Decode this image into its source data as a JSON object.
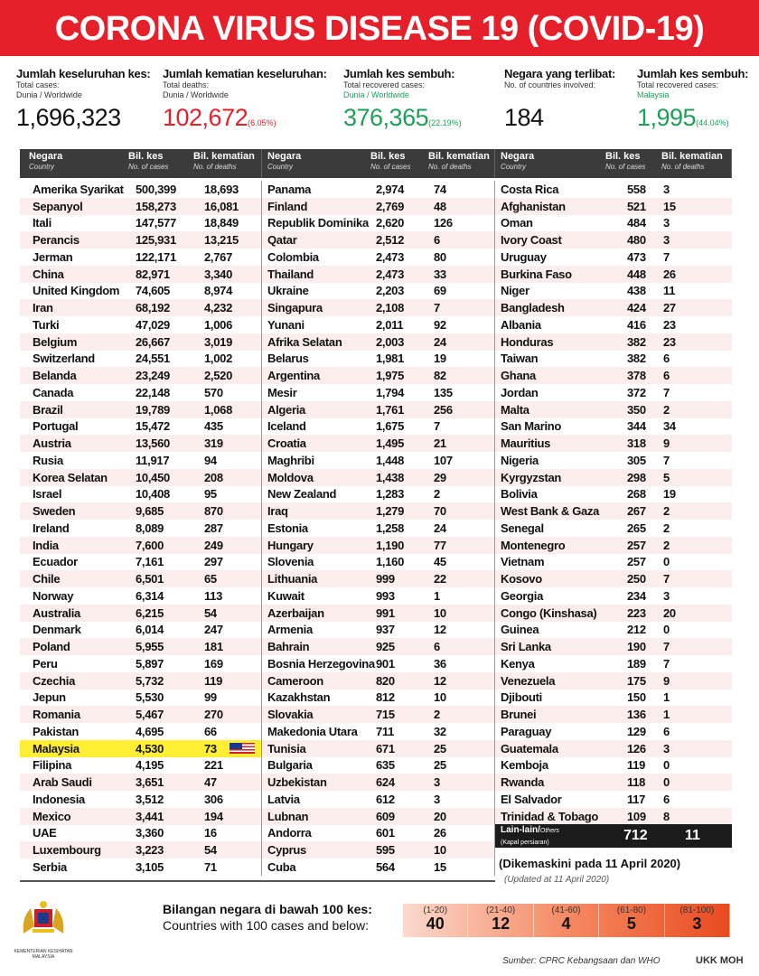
{
  "title": "CORONA VIRUS DISEASE 19 (COVID-19)",
  "stats": [
    {
      "heading": "Jumlah keseluruhan kes:",
      "sub1": "Total cases:",
      "sub2": "Dunia / Worldwide",
      "value": "1,696,323",
      "pct": ""
    },
    {
      "heading": "Jumlah kematian keseluruhan:",
      "sub1": "Total deaths:",
      "sub2": "Dunia / Worldwide",
      "value": "102,672",
      "pct": "(6.05%)"
    },
    {
      "heading": "Jumlah kes sembuh:",
      "sub1": "Total recovered cases:",
      "sub2": "Dunia / Worldwide",
      "value": "376,365",
      "pct": "(22.19%)"
    },
    {
      "heading": "Negara yang terlibat:",
      "sub1": "No. of countries involved:",
      "sub2": "",
      "value": "184",
      "pct": ""
    },
    {
      "heading": "Jumlah kes sembuh:",
      "sub1": "Total recovered cases:",
      "sub2": "Malaysia",
      "value": "1,995",
      "pct": "(44.04%)"
    }
  ],
  "header": {
    "country": "Negara",
    "country_en": "Country",
    "cases": "Bil. kes",
    "cases_en": "No. of cases",
    "deaths": "Bil. kematian",
    "deaths_en": "No. of deaths"
  },
  "columns": [
    [
      [
        "Amerika Syarikat",
        "500,399",
        "18,693"
      ],
      [
        "Sepanyol",
        "158,273",
        "16,081"
      ],
      [
        "Itali",
        "147,577",
        "18,849"
      ],
      [
        "Perancis",
        "125,931",
        "13,215"
      ],
      [
        "Jerman",
        "122,171",
        "2,767"
      ],
      [
        "China",
        "82,971",
        "3,340"
      ],
      [
        "United Kingdom",
        "74,605",
        "8,974"
      ],
      [
        "Iran",
        "68,192",
        "4,232"
      ],
      [
        "Turki",
        "47,029",
        "1,006"
      ],
      [
        "Belgium",
        "26,667",
        "3,019"
      ],
      [
        "Switzerland",
        "24,551",
        "1,002"
      ],
      [
        "Belanda",
        "23,249",
        "2,520"
      ],
      [
        "Canada",
        "22,148",
        "570"
      ],
      [
        "Brazil",
        "19,789",
        "1,068"
      ],
      [
        "Portugal",
        "15,472",
        "435"
      ],
      [
        "Austria",
        "13,560",
        "319"
      ],
      [
        "Rusia",
        "11,917",
        "94"
      ],
      [
        "Korea Selatan",
        "10,450",
        "208"
      ],
      [
        "Israel",
        "10,408",
        "95"
      ],
      [
        "Sweden",
        "9,685",
        "870"
      ],
      [
        "Ireland",
        "8,089",
        "287"
      ],
      [
        "India",
        "7,600",
        "249"
      ],
      [
        "Ecuador",
        "7,161",
        "297"
      ],
      [
        "Chile",
        "6,501",
        "65"
      ],
      [
        "Norway",
        "6,314",
        "113"
      ],
      [
        "Australia",
        "6,215",
        "54"
      ],
      [
        "Denmark",
        "6,014",
        "247"
      ],
      [
        "Poland",
        "5,955",
        "181"
      ],
      [
        "Peru",
        "5,897",
        "169"
      ],
      [
        "Czechia",
        "5,732",
        "119"
      ],
      [
        "Jepun",
        "5,530",
        "99"
      ],
      [
        "Romania",
        "5,467",
        "270"
      ],
      [
        "Pakistan",
        "4,695",
        "66"
      ],
      [
        "Malaysia",
        "4,530",
        "73"
      ],
      [
        "Filipina",
        "4,195",
        "221"
      ],
      [
        "Arab Saudi",
        "3,651",
        "47"
      ],
      [
        "Indonesia",
        "3,512",
        "306"
      ],
      [
        "Mexico",
        "3,441",
        "194"
      ],
      [
        "UAE",
        "3,360",
        "16"
      ],
      [
        "Luxembourg",
        "3,223",
        "54"
      ],
      [
        "Serbia",
        "3,105",
        "71"
      ]
    ],
    [
      [
        "Panama",
        "2,974",
        "74"
      ],
      [
        "Finland",
        "2,769",
        "48"
      ],
      [
        "Republik Dominika",
        "2,620",
        "126"
      ],
      [
        "Qatar",
        "2,512",
        "6"
      ],
      [
        "Colombia",
        "2,473",
        "80"
      ],
      [
        "Thailand",
        "2,473",
        "33"
      ],
      [
        "Ukraine",
        "2,203",
        "69"
      ],
      [
        "Singapura",
        "2,108",
        "7"
      ],
      [
        "Yunani",
        "2,011",
        "92"
      ],
      [
        "Afrika Selatan",
        "2,003",
        "24"
      ],
      [
        "Belarus",
        "1,981",
        "19"
      ],
      [
        "Argentina",
        "1,975",
        "82"
      ],
      [
        "Mesir",
        "1,794",
        "135"
      ],
      [
        "Algeria",
        "1,761",
        "256"
      ],
      [
        "Iceland",
        "1,675",
        "7"
      ],
      [
        "Croatia",
        "1,495",
        "21"
      ],
      [
        "Maghribi",
        "1,448",
        "107"
      ],
      [
        "Moldova",
        "1,438",
        "29"
      ],
      [
        "New Zealand",
        "1,283",
        "2"
      ],
      [
        "Iraq",
        "1,279",
        "70"
      ],
      [
        "Estonia",
        "1,258",
        "24"
      ],
      [
        "Hungary",
        "1,190",
        "77"
      ],
      [
        "Slovenia",
        "1,160",
        "45"
      ],
      [
        "Lithuania",
        "999",
        "22"
      ],
      [
        "Kuwait",
        "993",
        "1"
      ],
      [
        "Azerbaijan",
        "991",
        "10"
      ],
      [
        "Armenia",
        "937",
        "12"
      ],
      [
        "Bahrain",
        "925",
        "6"
      ],
      [
        "Bosnia Herzegovina",
        "901",
        "36"
      ],
      [
        "Cameroon",
        "820",
        "12"
      ],
      [
        "Kazakhstan",
        "812",
        "10"
      ],
      [
        "Slovakia",
        "715",
        "2"
      ],
      [
        "Makedonia Utara",
        "711",
        "32"
      ],
      [
        "Tunisia",
        "671",
        "25"
      ],
      [
        "Bulgaria",
        "635",
        "25"
      ],
      [
        "Uzbekistan",
        "624",
        "3"
      ],
      [
        "Latvia",
        "612",
        "3"
      ],
      [
        "Lubnan",
        "609",
        "20"
      ],
      [
        "Andorra",
        "601",
        "26"
      ],
      [
        "Cyprus",
        "595",
        "10"
      ],
      [
        "Cuba",
        "564",
        "15"
      ]
    ],
    [
      [
        "Costa Rica",
        "558",
        "3"
      ],
      [
        "Afghanistan",
        "521",
        "15"
      ],
      [
        "Oman",
        "484",
        "3"
      ],
      [
        "Ivory Coast",
        "480",
        "3"
      ],
      [
        "Uruguay",
        "473",
        "7"
      ],
      [
        "Burkina Faso",
        "448",
        "26"
      ],
      [
        "Niger",
        "438",
        "11"
      ],
      [
        "Bangladesh",
        "424",
        "27"
      ],
      [
        "Albania",
        "416",
        "23"
      ],
      [
        "Honduras",
        "382",
        "23"
      ],
      [
        "Taiwan",
        "382",
        "6"
      ],
      [
        "Ghana",
        "378",
        "6"
      ],
      [
        "Jordan",
        "372",
        "7"
      ],
      [
        "Malta",
        "350",
        "2"
      ],
      [
        "San Marino",
        "344",
        "34"
      ],
      [
        "Mauritius",
        "318",
        "9"
      ],
      [
        "Nigeria",
        "305",
        "7"
      ],
      [
        "Kyrgyzstan",
        "298",
        "5"
      ],
      [
        "Bolivia",
        "268",
        "19"
      ],
      [
        "West Bank & Gaza",
        "267",
        "2"
      ],
      [
        "Senegal",
        "265",
        "2"
      ],
      [
        "Montenegro",
        "257",
        "2"
      ],
      [
        "Vietnam",
        "257",
        "0"
      ],
      [
        "Kosovo",
        "250",
        "7"
      ],
      [
        "Georgia",
        "234",
        "3"
      ],
      [
        "Congo (Kinshasa)",
        "223",
        "20"
      ],
      [
        "Guinea",
        "212",
        "0"
      ],
      [
        "Sri Lanka",
        "190",
        "7"
      ],
      [
        "Kenya",
        "189",
        "7"
      ],
      [
        "Venezuela",
        "175",
        "9"
      ],
      [
        "Djibouti",
        "150",
        "1"
      ],
      [
        "Brunei",
        "136",
        "1"
      ],
      [
        "Paraguay",
        "129",
        "6"
      ],
      [
        "Guatemala",
        "126",
        "3"
      ],
      [
        "Kemboja",
        "119",
        "0"
      ],
      [
        "Rwanda",
        "118",
        "0"
      ],
      [
        "El Salvador",
        "117",
        "6"
      ],
      [
        "Trinidad & Tobago",
        "109",
        "8"
      ]
    ]
  ],
  "highlight": "Malaysia",
  "others": {
    "label": "Lain-lain/",
    "label_en": "Others",
    "sub": "(Kapal persiaran)",
    "cases": "712",
    "deaths": "11"
  },
  "updated": "(Dikemaskini pada 11 April 2020)",
  "updated_en": "(Updated at 11 April 2020)",
  "under100": {
    "title": "Bilangan negara di bawah 100 kes:",
    "subtitle": "Countries with 100 cases and below:",
    "bins": [
      {
        "range": "(1-20)",
        "count": "40"
      },
      {
        "range": "(21-40)",
        "count": "12"
      },
      {
        "range": "(41-60)",
        "count": "4"
      },
      {
        "range": "(61-80)",
        "count": "5"
      },
      {
        "range": "(81-100)",
        "count": "3"
      }
    ]
  },
  "ministry": "KEMENTERIAN KESIHATAN MALAYSIA",
  "source": "Sumber: CPRC Kebangsaan dan WHO",
  "credit": "UKK MOH",
  "colors": {
    "red": "#e5202a",
    "green": "#1fa05a",
    "header": "#3b3b3b",
    "highlight": "#ffee33"
  }
}
